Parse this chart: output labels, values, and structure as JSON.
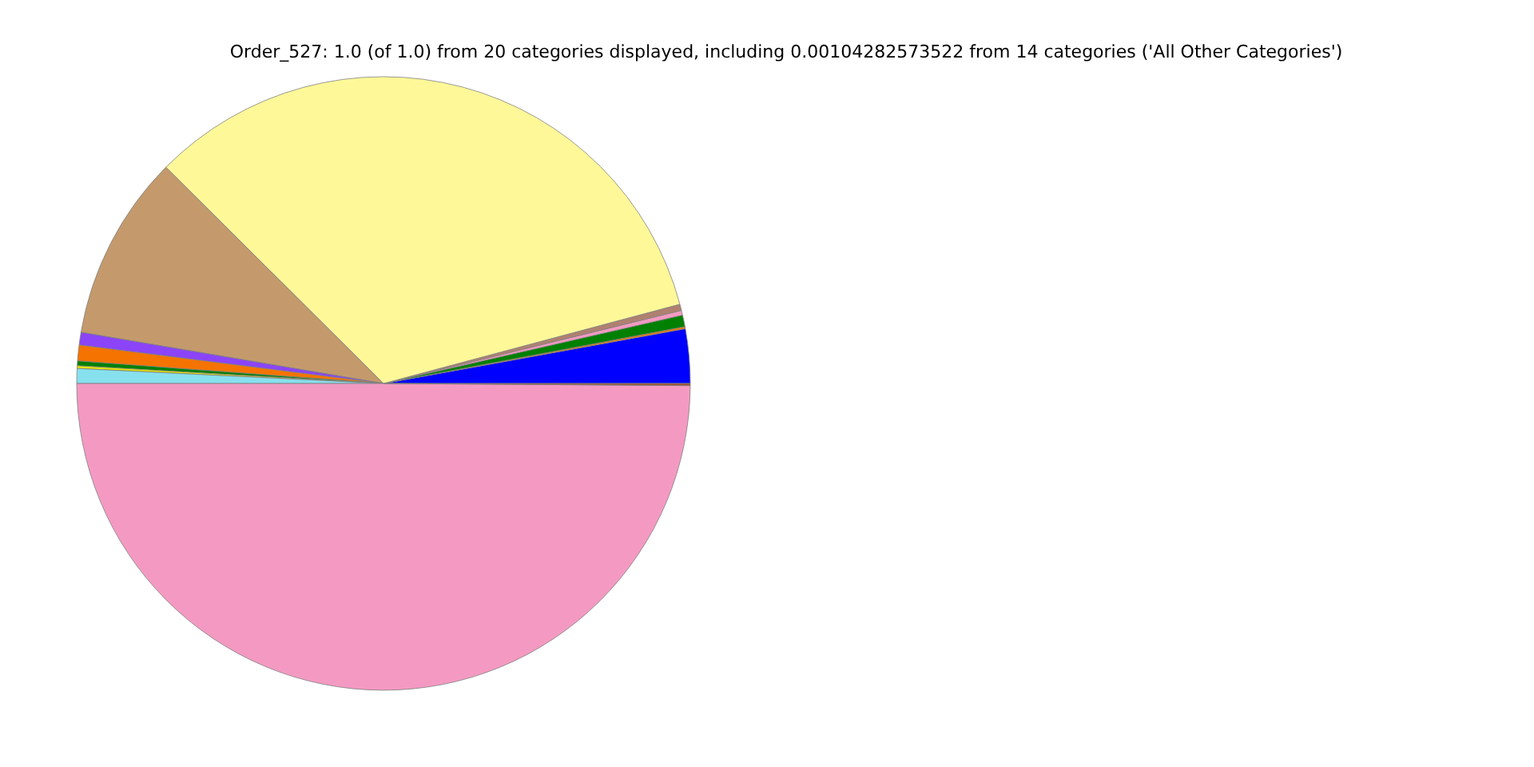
{
  "chart_data": {
    "type": "pie",
    "title": "Order_527: 1.0 (of 1.0) from 20 categories displayed, including 0.00104282573522 from 14 categories ('All Other Categories')",
    "categories": [
      null,
      null,
      null,
      null,
      null,
      null,
      null,
      null,
      null,
      null,
      null,
      null,
      null,
      null
    ],
    "values": [
      2.86,
      0.11,
      0.61,
      0.25,
      0.33,
      33.39,
      9.78,
      0.67,
      0.83,
      0.25,
      0.14,
      0.78,
      49.89,
      0.11
    ],
    "colors": [
      "#0000ff",
      "#f07800",
      "#008000",
      "#f49ac2",
      "#b08070",
      "#fff899",
      "#c49a6c",
      "#8b44f7",
      "#f57300",
      "#008000",
      "#e6e600",
      "#87e0ee",
      "#f49ac2",
      "#a0522d"
    ],
    "legend": false
  }
}
